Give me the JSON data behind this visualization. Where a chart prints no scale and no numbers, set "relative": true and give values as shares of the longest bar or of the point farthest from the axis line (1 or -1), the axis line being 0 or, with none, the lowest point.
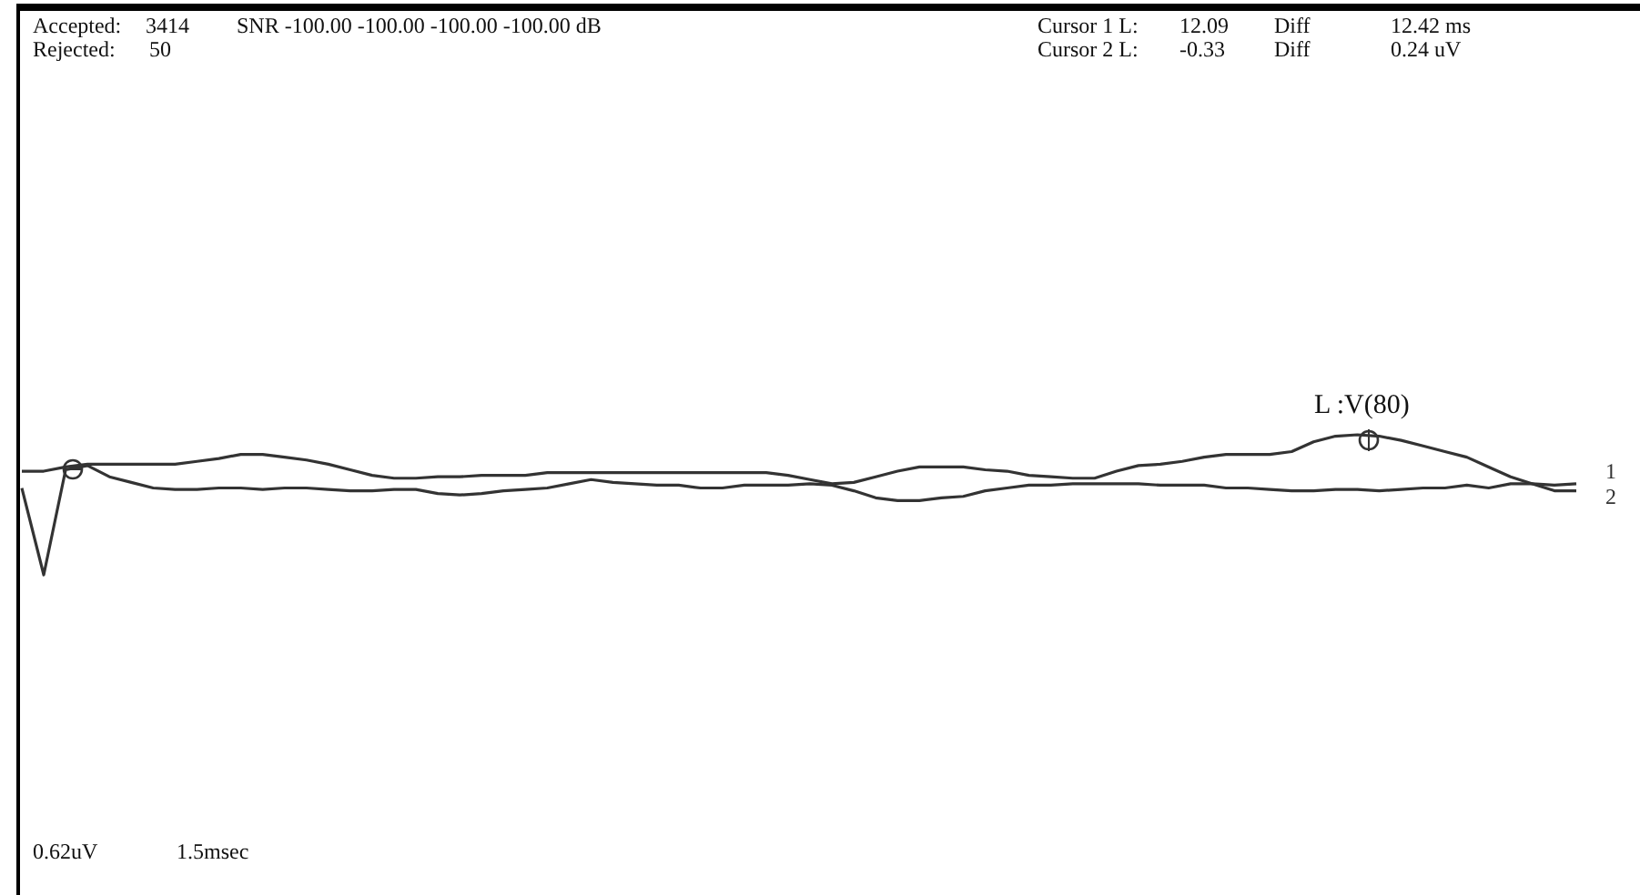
{
  "chart_data": {
    "type": "line",
    "relative": true,
    "categories": [
      null,
      null,
      null,
      null,
      null,
      null,
      null,
      null,
      null,
      null,
      null,
      null,
      null,
      null,
      null,
      null,
      null,
      null,
      null,
      null,
      null,
      null,
      null,
      null,
      null,
      null,
      null,
      null,
      null,
      null,
      null,
      null,
      null,
      null,
      null,
      null,
      null,
      null,
      null,
      null,
      null,
      null,
      null,
      null,
      null,
      null,
      null,
      null,
      null,
      null,
      null,
      null,
      null,
      null,
      null,
      null,
      null,
      null,
      null,
      null,
      null,
      null,
      null,
      null,
      null,
      null,
      null,
      null,
      null,
      null,
      null,
      null
    ],
    "series": [
      {
        "name": "1",
        "color": "#333333",
        "values": [
          0.74,
          0.74,
          0.77,
          0.79,
          0.79,
          0.79,
          0.79,
          0.79,
          0.81,
          0.83,
          0.86,
          0.86,
          0.84,
          0.82,
          0.79,
          0.75,
          0.71,
          0.69,
          0.69,
          0.7,
          0.7,
          0.71,
          0.71,
          0.71,
          0.73,
          0.73,
          0.73,
          0.73,
          0.73,
          0.73,
          0.73,
          0.73,
          0.73,
          0.73,
          0.73,
          0.71,
          0.68,
          0.65,
          0.66,
          0.7,
          0.74,
          0.77,
          0.77,
          0.77,
          0.75,
          0.74,
          0.71,
          0.7,
          0.69,
          0.69,
          0.74,
          0.78,
          0.79,
          0.81,
          0.84,
          0.86,
          0.86,
          0.86,
          0.88,
          0.95,
          0.99,
          1,
          0.99,
          0.96,
          0.92,
          0.88,
          0.84,
          0.77,
          0.7,
          0.65,
          0.64,
          0.65
        ]
      },
      {
        "name": "2",
        "color": "#333333",
        "values": [
          0.62,
          0,
          0.75,
          0.78,
          0.7,
          0.66,
          0.62,
          0.61,
          0.61,
          0.62,
          0.62,
          0.61,
          0.62,
          0.62,
          0.61,
          0.6,
          0.6,
          0.61,
          0.61,
          0.58,
          0.57,
          0.58,
          0.6,
          0.61,
          0.62,
          0.65,
          0.68,
          0.66,
          0.65,
          0.64,
          0.64,
          0.62,
          0.62,
          0.64,
          0.64,
          0.64,
          0.65,
          0.64,
          0.6,
          0.55,
          0.53,
          0.53,
          0.55,
          0.56,
          0.6,
          0.62,
          0.64,
          0.64,
          0.65,
          0.65,
          0.65,
          0.65,
          0.64,
          0.64,
          0.64,
          0.62,
          0.62,
          0.61,
          0.6,
          0.6,
          0.61,
          0.61,
          0.6,
          0.61,
          0.62,
          0.62,
          0.64,
          0.62,
          0.65,
          0.65,
          0.6,
          0.6
        ]
      }
    ],
    "annotations": [
      "Accepted:",
      "3414",
      "SNR  -100.00 -100.00 -100.00 -100.00 dB",
      "Rejected:",
      "50",
      "Cursor 1 L:",
      "12.09",
      "Diff",
      "12.42 ms",
      "Cursor 2 L:",
      "-0.33",
      "Diff",
      "0.24 uV",
      "0.62uV",
      "1.5msec",
      {
        "text": "L :V(80)",
        "y": 0.99
      }
    ]
  }
}
